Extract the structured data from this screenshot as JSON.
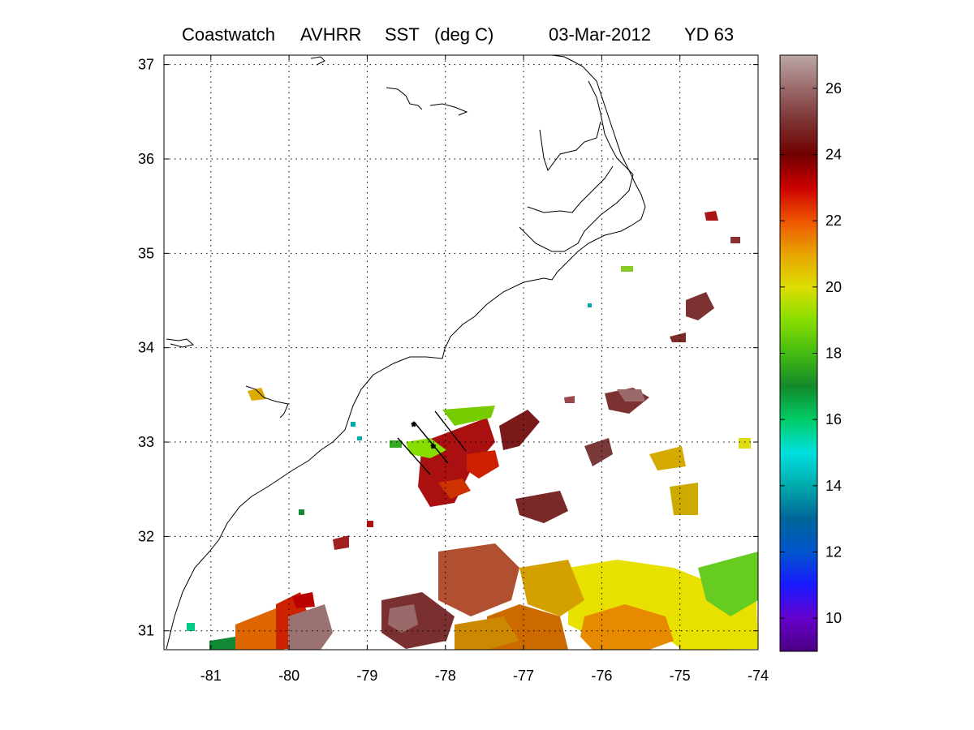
{
  "title": {
    "product": "Coastwatch",
    "sensor": "AVHRR",
    "variable": "SST",
    "units": "(deg C)",
    "date": "03-Mar-2012",
    "yearday": "YD 63"
  },
  "map": {
    "lon_range": [
      -81.6,
      -74.0
    ],
    "lat_range": [
      30.8,
      37.1
    ],
    "lon_ticks": [
      "-81",
      "-80",
      "-79",
      "-78",
      "-77",
      "-76",
      "-75",
      "-74"
    ],
    "lat_ticks": [
      "31",
      "32",
      "33",
      "34",
      "35",
      "36",
      "37"
    ],
    "grid": "dotted"
  },
  "colorbar": {
    "range": [
      9,
      27
    ],
    "ticks": [
      "10",
      "12",
      "14",
      "16",
      "18",
      "20",
      "22",
      "24",
      "26"
    ],
    "colors": [
      "#4b0082",
      "#6600cc",
      "#1a1aff",
      "#0055cc",
      "#006699",
      "#00aaaa",
      "#00e0e0",
      "#00cc66",
      "#128a2a",
      "#44bb11",
      "#88dd00",
      "#dddd00",
      "#e8a400",
      "#ee5500",
      "#cc0000",
      "#700000",
      "#7d3232",
      "#9a6a6a",
      "#bca7a7"
    ]
  }
}
